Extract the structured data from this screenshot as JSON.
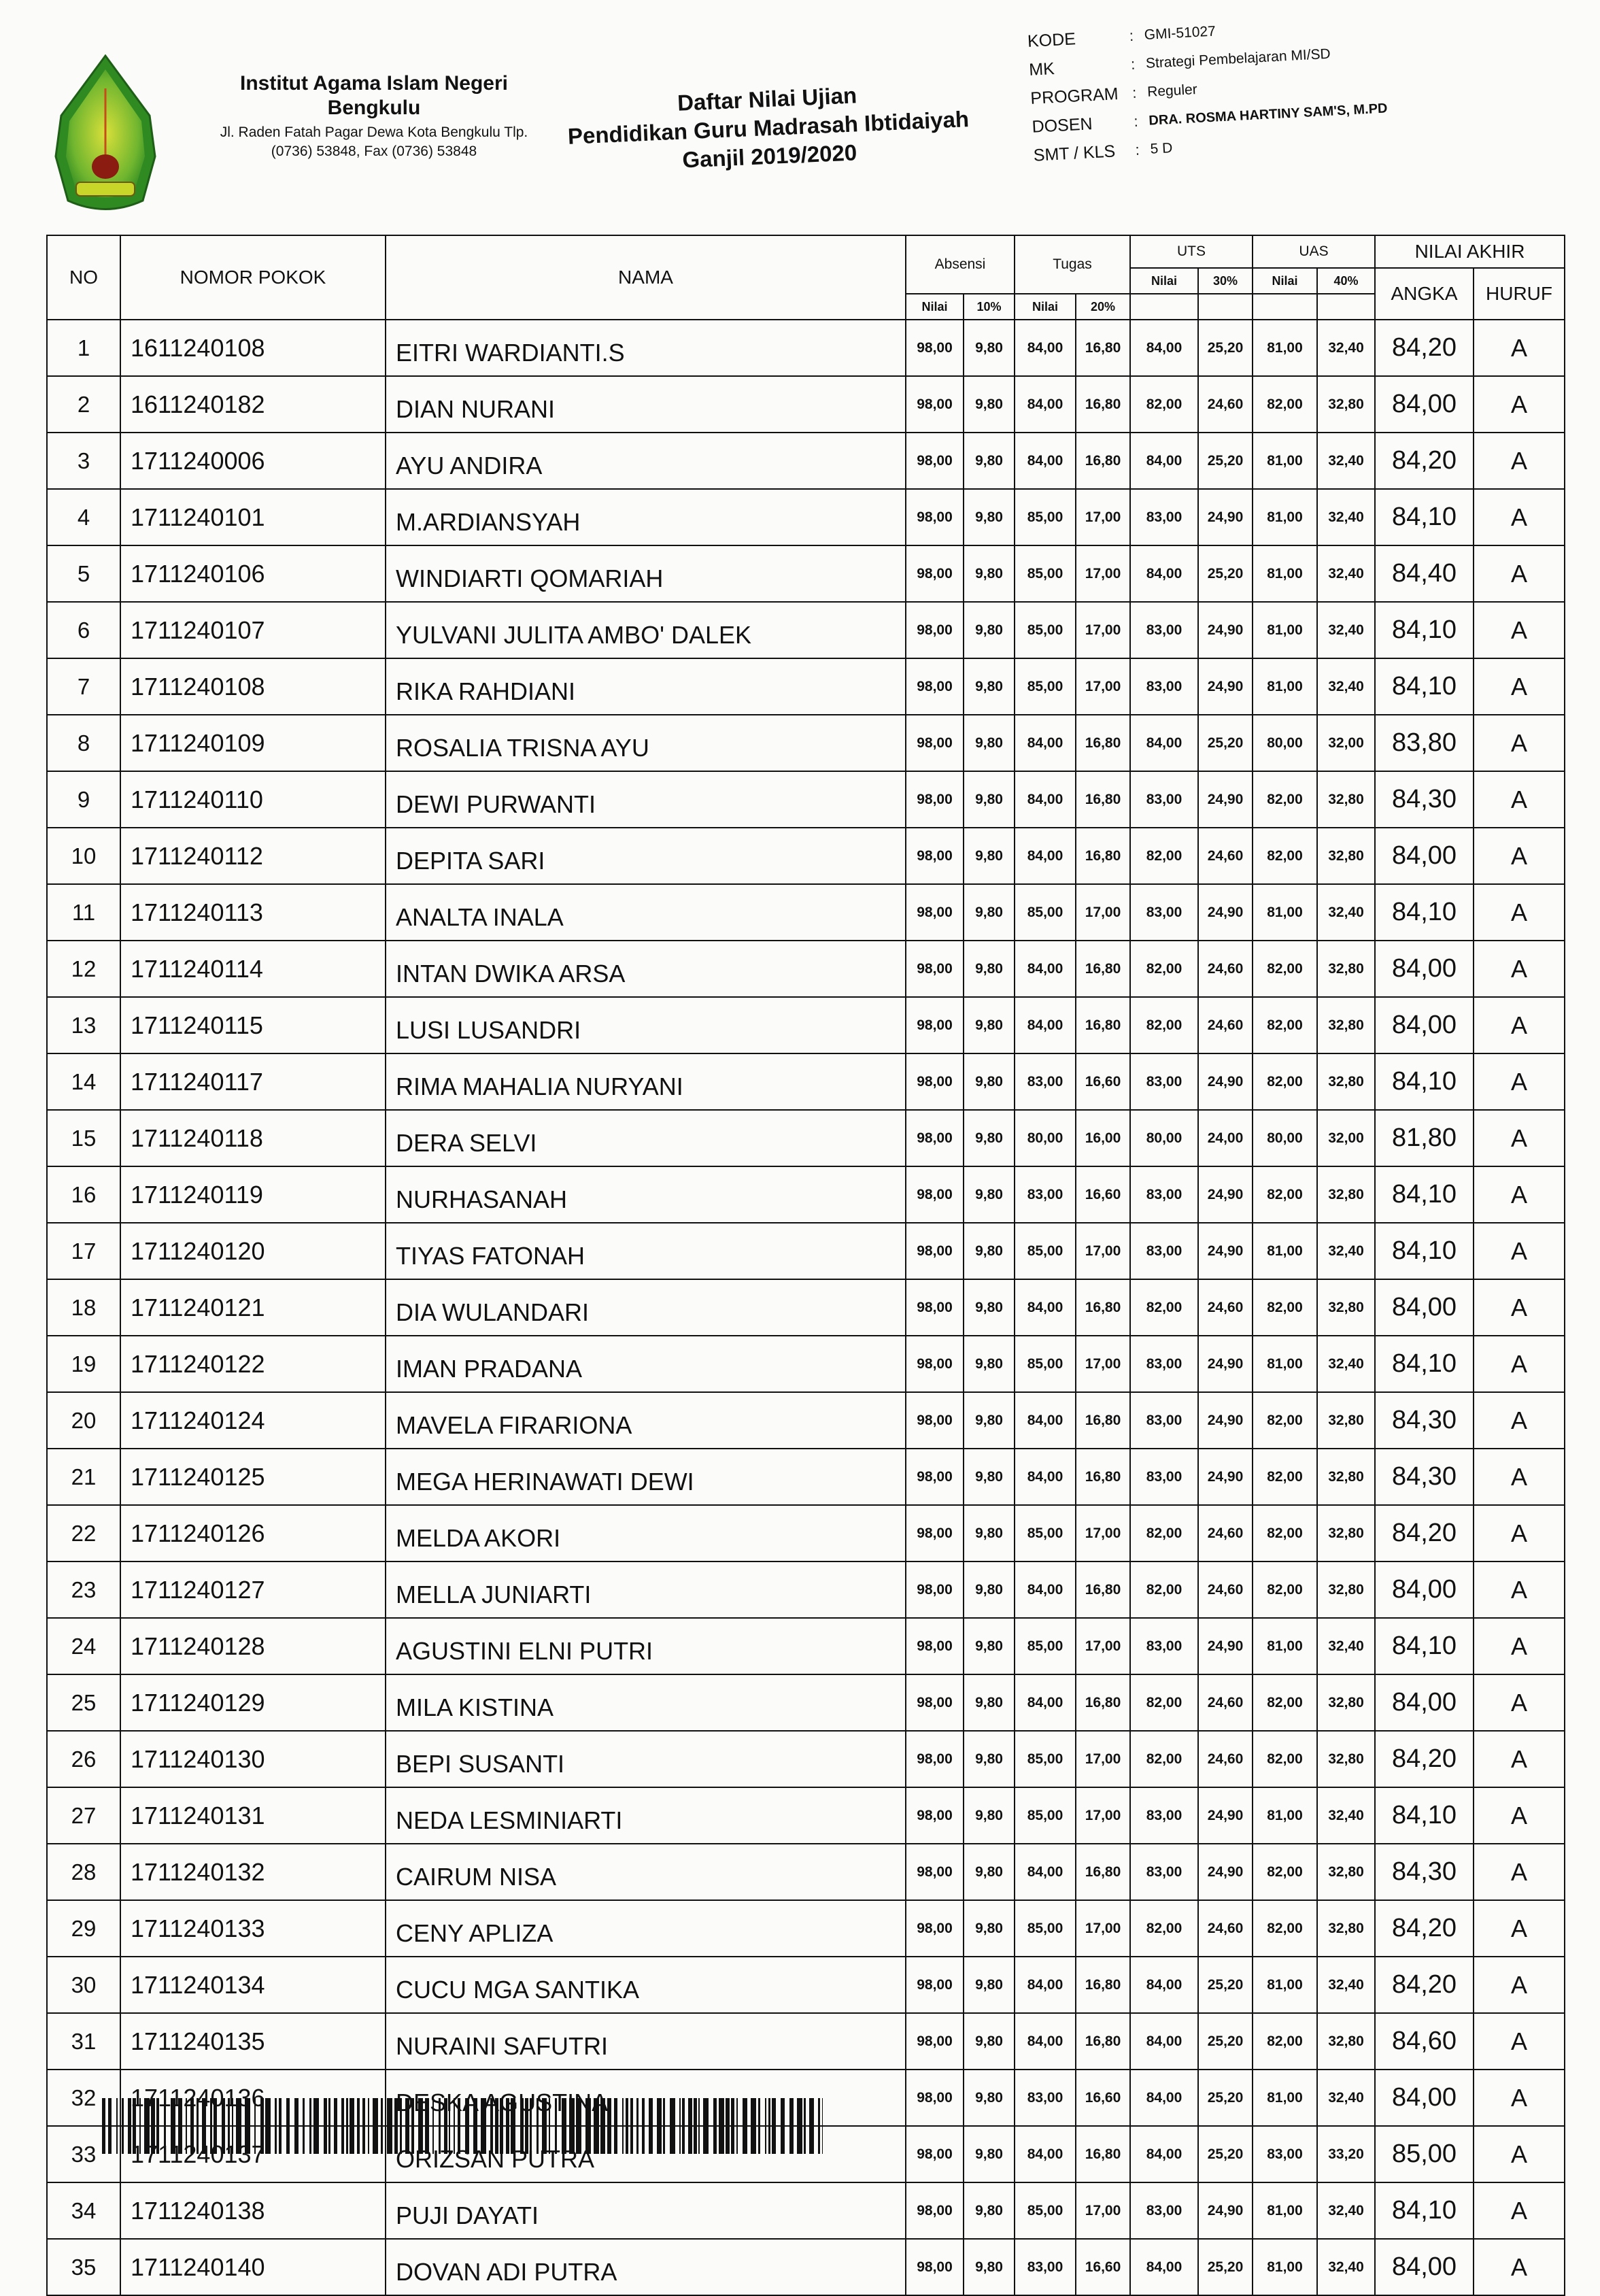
{
  "header": {
    "institution_name": "Institut Agama Islam Negeri Bengkulu",
    "institution_address": "Jl. Raden Fatah Pagar Dewa Kota Bengkulu Tlp. (0736) 53848, Fax (0736) 53848",
    "logo_text": "INSTITUT AGAMA ISLAM NEGERI BENGKULU",
    "title": "Daftar Nilai Ujian",
    "program_study": "Pendidikan Guru Madrasah Ibtidaiyah",
    "semester_period": "Ganjil 2019/2020"
  },
  "meta": [
    {
      "label": "KODE",
      "value": "GMI-51027"
    },
    {
      "label": "MK",
      "value": "Strategi Pembelajaran MI/SD"
    },
    {
      "label": "PROGRAM",
      "value": "Reguler"
    },
    {
      "label": "DOSEN",
      "value": "DRA. ROSMA HARTINY SAM'S, M.PD"
    },
    {
      "label": "SMT / KLS",
      "value": "5 D"
    }
  ],
  "table": {
    "headers": {
      "no": "NO",
      "nim": "NOMOR POKOK",
      "nama": "NAMA",
      "absensi": "Absensi",
      "tugas": "Tugas",
      "uts": "UTS",
      "uas": "UAS",
      "nilai_akhir": "NILAI AKHIR",
      "angka": "ANGKA",
      "huruf": "HURUF",
      "nilai": "Nilai",
      "pct_absensi": "10%",
      "pct_tugas": "20%",
      "pct_uts": "30%",
      "pct_uas": "40%"
    },
    "rows": [
      {
        "no": "1",
        "nim": "1611240108",
        "nama": "EITRI WARDIANTI.S",
        "abs": "98,00",
        "abs_w": "9,80",
        "tgs": "84,00",
        "tgs_w": "16,80",
        "uts": "84,00",
        "uts_w": "25,20",
        "uas": "81,00",
        "uas_w": "32,40",
        "angka": "84,20",
        "huruf": "A"
      },
      {
        "no": "2",
        "nim": "1611240182",
        "nama": "DIAN NURANI",
        "abs": "98,00",
        "abs_w": "9,80",
        "tgs": "84,00",
        "tgs_w": "16,80",
        "uts": "82,00",
        "uts_w": "24,60",
        "uas": "82,00",
        "uas_w": "32,80",
        "angka": "84,00",
        "huruf": "A"
      },
      {
        "no": "3",
        "nim": "1711240006",
        "nama": "AYU ANDIRA",
        "abs": "98,00",
        "abs_w": "9,80",
        "tgs": "84,00",
        "tgs_w": "16,80",
        "uts": "84,00",
        "uts_w": "25,20",
        "uas": "81,00",
        "uas_w": "32,40",
        "angka": "84,20",
        "huruf": "A"
      },
      {
        "no": "4",
        "nim": "1711240101",
        "nama": "M.ARDIANSYAH",
        "abs": "98,00",
        "abs_w": "9,80",
        "tgs": "85,00",
        "tgs_w": "17,00",
        "uts": "83,00",
        "uts_w": "24,90",
        "uas": "81,00",
        "uas_w": "32,40",
        "angka": "84,10",
        "huruf": "A"
      },
      {
        "no": "5",
        "nim": "1711240106",
        "nama": "WINDIARTI QOMARIAH",
        "abs": "98,00",
        "abs_w": "9,80",
        "tgs": "85,00",
        "tgs_w": "17,00",
        "uts": "84,00",
        "uts_w": "25,20",
        "uas": "81,00",
        "uas_w": "32,40",
        "angka": "84,40",
        "huruf": "A"
      },
      {
        "no": "6",
        "nim": "1711240107",
        "nama": "YULVANI JULITA AMBO' DALEK",
        "abs": "98,00",
        "abs_w": "9,80",
        "tgs": "85,00",
        "tgs_w": "17,00",
        "uts": "83,00",
        "uts_w": "24,90",
        "uas": "81,00",
        "uas_w": "32,40",
        "angka": "84,10",
        "huruf": "A"
      },
      {
        "no": "7",
        "nim": "1711240108",
        "nama": "RIKA RAHDIANI",
        "abs": "98,00",
        "abs_w": "9,80",
        "tgs": "85,00",
        "tgs_w": "17,00",
        "uts": "83,00",
        "uts_w": "24,90",
        "uas": "81,00",
        "uas_w": "32,40",
        "angka": "84,10",
        "huruf": "A"
      },
      {
        "no": "8",
        "nim": "1711240109",
        "nama": "ROSALIA TRISNA AYU",
        "abs": "98,00",
        "abs_w": "9,80",
        "tgs": "84,00",
        "tgs_w": "16,80",
        "uts": "84,00",
        "uts_w": "25,20",
        "uas": "80,00",
        "uas_w": "32,00",
        "angka": "83,80",
        "huruf": "A"
      },
      {
        "no": "9",
        "nim": "1711240110",
        "nama": "DEWI PURWANTI",
        "abs": "98,00",
        "abs_w": "9,80",
        "tgs": "84,00",
        "tgs_w": "16,80",
        "uts": "83,00",
        "uts_w": "24,90",
        "uas": "82,00",
        "uas_w": "32,80",
        "angka": "84,30",
        "huruf": "A"
      },
      {
        "no": "10",
        "nim": "1711240112",
        "nama": "DEPITA SARI",
        "abs": "98,00",
        "abs_w": "9,80",
        "tgs": "84,00",
        "tgs_w": "16,80",
        "uts": "82,00",
        "uts_w": "24,60",
        "uas": "82,00",
        "uas_w": "32,80",
        "angka": "84,00",
        "huruf": "A"
      },
      {
        "no": "11",
        "nim": "1711240113",
        "nama": "ANALTA INALA",
        "abs": "98,00",
        "abs_w": "9,80",
        "tgs": "85,00",
        "tgs_w": "17,00",
        "uts": "83,00",
        "uts_w": "24,90",
        "uas": "81,00",
        "uas_w": "32,40",
        "angka": "84,10",
        "huruf": "A"
      },
      {
        "no": "12",
        "nim": "1711240114",
        "nama": "INTAN DWIKA ARSA",
        "abs": "98,00",
        "abs_w": "9,80",
        "tgs": "84,00",
        "tgs_w": "16,80",
        "uts": "82,00",
        "uts_w": "24,60",
        "uas": "82,00",
        "uas_w": "32,80",
        "angka": "84,00",
        "huruf": "A"
      },
      {
        "no": "13",
        "nim": "1711240115",
        "nama": "LUSI LUSANDRI",
        "abs": "98,00",
        "abs_w": "9,80",
        "tgs": "84,00",
        "tgs_w": "16,80",
        "uts": "82,00",
        "uts_w": "24,60",
        "uas": "82,00",
        "uas_w": "32,80",
        "angka": "84,00",
        "huruf": "A"
      },
      {
        "no": "14",
        "nim": "1711240117",
        "nama": "RIMA MAHALIA NURYANI",
        "abs": "98,00",
        "abs_w": "9,80",
        "tgs": "83,00",
        "tgs_w": "16,60",
        "uts": "83,00",
        "uts_w": "24,90",
        "uas": "82,00",
        "uas_w": "32,80",
        "angka": "84,10",
        "huruf": "A"
      },
      {
        "no": "15",
        "nim": "1711240118",
        "nama": "DERA SELVI",
        "abs": "98,00",
        "abs_w": "9,80",
        "tgs": "80,00",
        "tgs_w": "16,00",
        "uts": "80,00",
        "uts_w": "24,00",
        "uas": "80,00",
        "uas_w": "32,00",
        "angka": "81,80",
        "huruf": "A"
      },
      {
        "no": "16",
        "nim": "1711240119",
        "nama": "NURHASANAH",
        "abs": "98,00",
        "abs_w": "9,80",
        "tgs": "83,00",
        "tgs_w": "16,60",
        "uts": "83,00",
        "uts_w": "24,90",
        "uas": "82,00",
        "uas_w": "32,80",
        "angka": "84,10",
        "huruf": "A"
      },
      {
        "no": "17",
        "nim": "1711240120",
        "nama": "TIYAS FATONAH",
        "abs": "98,00",
        "abs_w": "9,80",
        "tgs": "85,00",
        "tgs_w": "17,00",
        "uts": "83,00",
        "uts_w": "24,90",
        "uas": "81,00",
        "uas_w": "32,40",
        "angka": "84,10",
        "huruf": "A"
      },
      {
        "no": "18",
        "nim": "1711240121",
        "nama": "DIA WULANDARI",
        "abs": "98,00",
        "abs_w": "9,80",
        "tgs": "84,00",
        "tgs_w": "16,80",
        "uts": "82,00",
        "uts_w": "24,60",
        "uas": "82,00",
        "uas_w": "32,80",
        "angka": "84,00",
        "huruf": "A"
      },
      {
        "no": "19",
        "nim": "1711240122",
        "nama": "IMAN PRADANA",
        "abs": "98,00",
        "abs_w": "9,80",
        "tgs": "85,00",
        "tgs_w": "17,00",
        "uts": "83,00",
        "uts_w": "24,90",
        "uas": "81,00",
        "uas_w": "32,40",
        "angka": "84,10",
        "huruf": "A"
      },
      {
        "no": "20",
        "nim": "1711240124",
        "nama": "MAVELA FIRARIONA",
        "abs": "98,00",
        "abs_w": "9,80",
        "tgs": "84,00",
        "tgs_w": "16,80",
        "uts": "83,00",
        "uts_w": "24,90",
        "uas": "82,00",
        "uas_w": "32,80",
        "angka": "84,30",
        "huruf": "A"
      },
      {
        "no": "21",
        "nim": "1711240125",
        "nama": "MEGA HERINAWATI DEWI",
        "abs": "98,00",
        "abs_w": "9,80",
        "tgs": "84,00",
        "tgs_w": "16,80",
        "uts": "83,00",
        "uts_w": "24,90",
        "uas": "82,00",
        "uas_w": "32,80",
        "angka": "84,30",
        "huruf": "A"
      },
      {
        "no": "22",
        "nim": "1711240126",
        "nama": "MELDA AKORI",
        "abs": "98,00",
        "abs_w": "9,80",
        "tgs": "85,00",
        "tgs_w": "17,00",
        "uts": "82,00",
        "uts_w": "24,60",
        "uas": "82,00",
        "uas_w": "32,80",
        "angka": "84,20",
        "huruf": "A"
      },
      {
        "no": "23",
        "nim": "1711240127",
        "nama": "MELLA JUNIARTI",
        "abs": "98,00",
        "abs_w": "9,80",
        "tgs": "84,00",
        "tgs_w": "16,80",
        "uts": "82,00",
        "uts_w": "24,60",
        "uas": "82,00",
        "uas_w": "32,80",
        "angka": "84,00",
        "huruf": "A"
      },
      {
        "no": "24",
        "nim": "1711240128",
        "nama": "AGUSTINI ELNI PUTRI",
        "abs": "98,00",
        "abs_w": "9,80",
        "tgs": "85,00",
        "tgs_w": "17,00",
        "uts": "83,00",
        "uts_w": "24,90",
        "uas": "81,00",
        "uas_w": "32,40",
        "angka": "84,10",
        "huruf": "A"
      },
      {
        "no": "25",
        "nim": "1711240129",
        "nama": "MILA KISTINA",
        "abs": "98,00",
        "abs_w": "9,80",
        "tgs": "84,00",
        "tgs_w": "16,80",
        "uts": "82,00",
        "uts_w": "24,60",
        "uas": "82,00",
        "uas_w": "32,80",
        "angka": "84,00",
        "huruf": "A"
      },
      {
        "no": "26",
        "nim": "1711240130",
        "nama": "BEPI SUSANTI",
        "abs": "98,00",
        "abs_w": "9,80",
        "tgs": "85,00",
        "tgs_w": "17,00",
        "uts": "82,00",
        "uts_w": "24,60",
        "uas": "82,00",
        "uas_w": "32,80",
        "angka": "84,20",
        "huruf": "A"
      },
      {
        "no": "27",
        "nim": "1711240131",
        "nama": "NEDA LESMINIARTI",
        "abs": "98,00",
        "abs_w": "9,80",
        "tgs": "85,00",
        "tgs_w": "17,00",
        "uts": "83,00",
        "uts_w": "24,90",
        "uas": "81,00",
        "uas_w": "32,40",
        "angka": "84,10",
        "huruf": "A"
      },
      {
        "no": "28",
        "nim": "1711240132",
        "nama": "CAIRUM NISA",
        "abs": "98,00",
        "abs_w": "9,80",
        "tgs": "84,00",
        "tgs_w": "16,80",
        "uts": "83,00",
        "uts_w": "24,90",
        "uas": "82,00",
        "uas_w": "32,80",
        "angka": "84,30",
        "huruf": "A"
      },
      {
        "no": "29",
        "nim": "1711240133",
        "nama": "CENY APLIZA",
        "abs": "98,00",
        "abs_w": "9,80",
        "tgs": "85,00",
        "tgs_w": "17,00",
        "uts": "82,00",
        "uts_w": "24,60",
        "uas": "82,00",
        "uas_w": "32,80",
        "angka": "84,20",
        "huruf": "A"
      },
      {
        "no": "30",
        "nim": "1711240134",
        "nama": "CUCU MGA SANTIKA",
        "abs": "98,00",
        "abs_w": "9,80",
        "tgs": "84,00",
        "tgs_w": "16,80",
        "uts": "84,00",
        "uts_w": "25,20",
        "uas": "81,00",
        "uas_w": "32,40",
        "angka": "84,20",
        "huruf": "A"
      },
      {
        "no": "31",
        "nim": "1711240135",
        "nama": "NURAINI SAFUTRI",
        "abs": "98,00",
        "abs_w": "9,80",
        "tgs": "84,00",
        "tgs_w": "16,80",
        "uts": "84,00",
        "uts_w": "25,20",
        "uas": "82,00",
        "uas_w": "32,80",
        "angka": "84,60",
        "huruf": "A"
      },
      {
        "no": "32",
        "nim": "1711240136",
        "nama": "DESKA AGUSTINA",
        "abs": "98,00",
        "abs_w": "9,80",
        "tgs": "83,00",
        "tgs_w": "16,60",
        "uts": "84,00",
        "uts_w": "25,20",
        "uas": "81,00",
        "uas_w": "32,40",
        "angka": "84,00",
        "huruf": "A"
      },
      {
        "no": "33",
        "nim": "1711240137",
        "nama": "ORIZSAN PUTRA",
        "abs": "98,00",
        "abs_w": "9,80",
        "tgs": "84,00",
        "tgs_w": "16,80",
        "uts": "84,00",
        "uts_w": "25,20",
        "uas": "83,00",
        "uas_w": "33,20",
        "angka": "85,00",
        "huruf": "A"
      },
      {
        "no": "34",
        "nim": "1711240138",
        "nama": "PUJI DAYATI",
        "abs": "98,00",
        "abs_w": "9,80",
        "tgs": "85,00",
        "tgs_w": "17,00",
        "uts": "83,00",
        "uts_w": "24,90",
        "uas": "81,00",
        "uas_w": "32,40",
        "angka": "84,10",
        "huruf": "A"
      },
      {
        "no": "35",
        "nim": "1711240140",
        "nama": "DOVAN ADI PUTRA",
        "abs": "98,00",
        "abs_w": "9,80",
        "tgs": "83,00",
        "tgs_w": "16,60",
        "uts": "84,00",
        "uts_w": "25,20",
        "uas": "81,00",
        "uas_w": "32,40",
        "angka": "84,00",
        "huruf": "A"
      }
    ]
  },
  "colors": {
    "logo_green": "#3f9b2a",
    "logo_yellow": "#c8d62a",
    "logo_red": "#8a1c12",
    "ink": "#111111"
  },
  "icons": {
    "logo": "iain-bengkulu-emblem",
    "barcode": "barcode"
  }
}
